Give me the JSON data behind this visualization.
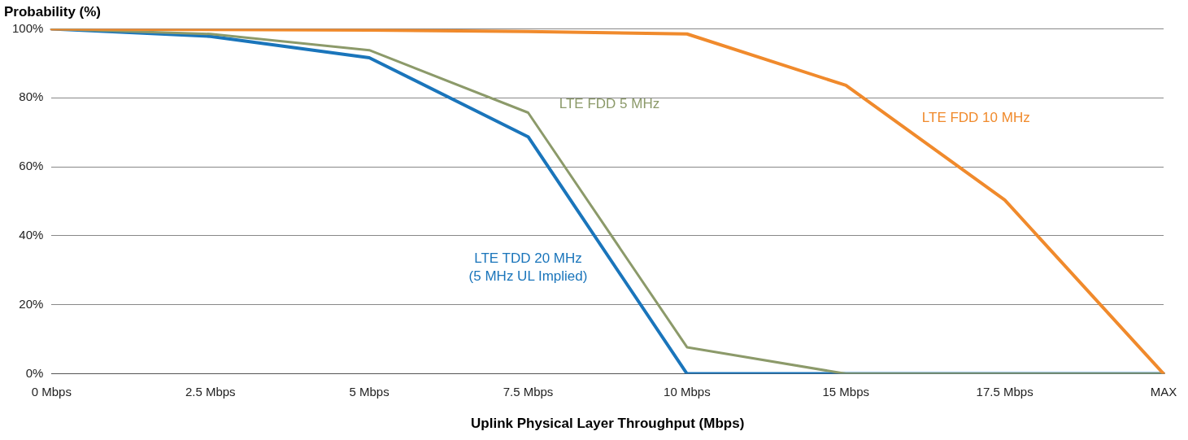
{
  "chart_data": {
    "type": "line",
    "ylabel": "Probability (%)",
    "xlabel": "Uplink Physical Layer Throughput (Mbps)",
    "categories": [
      "0 Mbps",
      "2.5 Mbps",
      "5 Mbps",
      "7.5 Mbps",
      "10 Mbps",
      "15 Mbps",
      "17.5 Mbps",
      "MAX"
    ],
    "series": [
      {
        "name": "LTE FDD 10 MHz",
        "color": "#f08a2c",
        "values": [
          100,
          99.8,
          99.6,
          99.2,
          98.5,
          83.6,
          50.4,
          0
        ]
      },
      {
        "name": "LTE FDD 5 MHz",
        "color": "#8c9a6a",
        "values": [
          100,
          98.5,
          93.8,
          75.7,
          7.7,
          0,
          0,
          0
        ]
      },
      {
        "name": "LTE TDD 20 MHz\n(5 MHz UL Implied)",
        "color": "#1a75bb",
        "values": [
          100,
          97.8,
          91.6,
          68.7,
          0,
          0,
          0,
          0
        ]
      }
    ],
    "ylim": [
      0,
      100
    ],
    "yticks": [
      {
        "value": 0,
        "label": "0%"
      },
      {
        "value": 20,
        "label": "20%"
      },
      {
        "value": 40,
        "label": "40%"
      },
      {
        "value": 60,
        "label": "60%"
      },
      {
        "value": 80,
        "label": "80%"
      },
      {
        "value": 100,
        "label": "100%"
      }
    ],
    "grid": "y",
    "legend": false,
    "marker": "none",
    "line_style": "solid"
  }
}
